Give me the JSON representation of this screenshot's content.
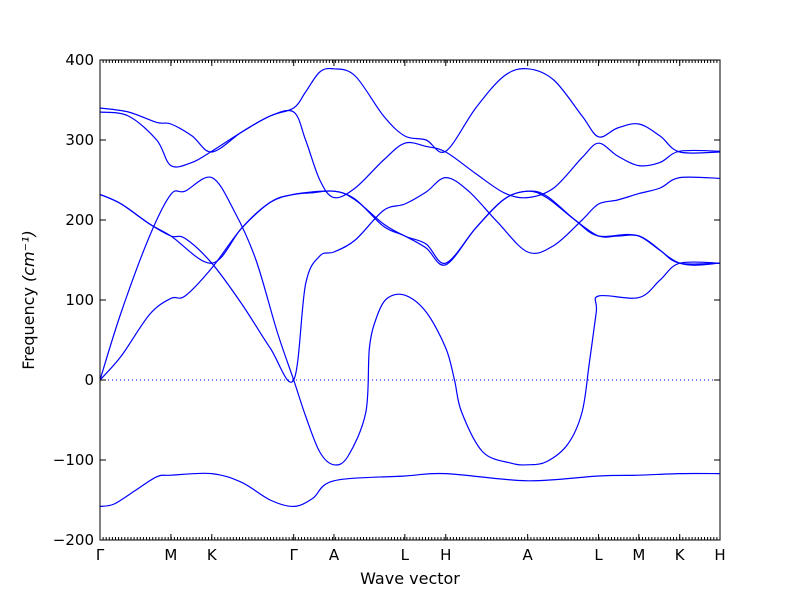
{
  "chart_data": {
    "type": "line",
    "xlabel": "Wave vector",
    "ylabel": "Frequency",
    "ylabel_unit": "(cm⁻¹)",
    "ylim": [
      -200,
      400
    ],
    "yticks": [
      -200,
      -100,
      0,
      100,
      200,
      300,
      400
    ],
    "xticks": [
      {
        "label": "Γ",
        "x": 0
      },
      {
        "label": "M",
        "x": 1
      },
      {
        "label": "K",
        "x": 1.577
      },
      {
        "label": "Γ",
        "x": 2.732
      },
      {
        "label": "A",
        "x": 3.3
      },
      {
        "label": "L",
        "x": 4.3
      },
      {
        "label": "H",
        "x": 4.877
      },
      {
        "label": "A",
        "x": 6.032
      },
      {
        "label": "L",
        "x": 7.032
      },
      {
        "label": "M",
        "x": 7.6
      },
      {
        "label": "K",
        "x": 8.177
      },
      {
        "label": "H",
        "x": 8.745
      }
    ],
    "zero_line": true,
    "series": [
      {
        "values": [
          [
            0,
            -158
          ],
          [
            0.2,
            -155
          ],
          [
            0.5,
            -138
          ],
          [
            0.8,
            -121
          ],
          [
            1,
            -119
          ],
          [
            1.577,
            -117
          ],
          [
            2,
            -128
          ],
          [
            2.4,
            -150
          ],
          [
            2.732,
            -158
          ],
          [
            3.0,
            -148
          ],
          [
            3.3,
            -126
          ],
          [
            4.3,
            -120
          ],
          [
            4.877,
            -117
          ],
          [
            6.032,
            -126
          ],
          [
            7.032,
            -120
          ],
          [
            7.6,
            -119
          ],
          [
            8.177,
            -117
          ],
          [
            8.745,
            -117
          ]
        ]
      },
      {
        "values": [
          [
            0,
            0
          ],
          [
            0.3,
            30
          ],
          [
            0.7,
            82
          ],
          [
            1,
            102
          ],
          [
            1.2,
            105
          ],
          [
            1.577,
            140
          ],
          [
            2.0,
            190
          ],
          [
            2.4,
            222
          ],
          [
            2.732,
            232
          ],
          [
            3.0,
            234
          ],
          [
            3.3,
            236
          ],
          [
            3.6,
            226
          ],
          [
            4.0,
            192
          ],
          [
            4.3,
            180
          ],
          [
            4.6,
            165
          ],
          [
            4.877,
            144
          ],
          [
            5.3,
            190
          ],
          [
            5.7,
            226
          ],
          [
            6.032,
            236
          ],
          [
            6.3,
            228
          ],
          [
            6.7,
            200
          ],
          [
            7.032,
            180
          ],
          [
            7.3,
            180
          ],
          [
            7.6,
            180
          ],
          [
            7.9,
            162
          ],
          [
            8.177,
            146
          ],
          [
            8.745,
            146
          ]
        ]
      },
      {
        "values": [
          [
            0,
            0
          ],
          [
            0.3,
            85
          ],
          [
            0.7,
            180
          ],
          [
            1,
            232
          ],
          [
            1.2,
            236
          ],
          [
            1.577,
            253
          ],
          [
            1.9,
            210
          ],
          [
            2.2,
            150
          ],
          [
            2.5,
            60
          ],
          [
            2.732,
            0
          ],
          [
            2.9,
            -45
          ],
          [
            3.1,
            -90
          ],
          [
            3.3,
            -106
          ],
          [
            3.5,
            -95
          ],
          [
            3.75,
            -40
          ],
          [
            3.8,
            40
          ],
          [
            3.9,
            78
          ],
          [
            4.05,
            102
          ],
          [
            4.3,
            106
          ],
          [
            4.6,
            85
          ],
          [
            4.877,
            40
          ],
          [
            5.0,
            0
          ],
          [
            5.1,
            -40
          ],
          [
            5.4,
            -90
          ],
          [
            5.8,
            -104
          ],
          [
            6.032,
            -106
          ],
          [
            6.3,
            -102
          ],
          [
            6.6,
            -80
          ],
          [
            6.8,
            -40
          ],
          [
            6.9,
            20
          ],
          [
            7.0,
            85
          ],
          [
            7.032,
            105
          ],
          [
            7.6,
            103
          ],
          [
            7.9,
            125
          ],
          [
            8.177,
            146
          ],
          [
            8.745,
            146
          ]
        ]
      },
      {
        "values": [
          [
            0,
            232
          ],
          [
            0.3,
            220
          ],
          [
            0.7,
            195
          ],
          [
            1,
            180
          ],
          [
            1.2,
            177
          ],
          [
            1.577,
            146
          ],
          [
            2.0,
            95
          ],
          [
            2.4,
            40
          ],
          [
            2.732,
            0
          ],
          [
            2.9,
            120
          ],
          [
            3.1,
            155
          ],
          [
            3.3,
            160
          ],
          [
            3.6,
            175
          ],
          [
            4.0,
            212
          ],
          [
            4.3,
            220
          ],
          [
            4.6,
            235
          ],
          [
            4.877,
            253
          ],
          [
            5.2,
            236
          ],
          [
            5.6,
            198
          ],
          [
            6.032,
            160
          ],
          [
            6.4,
            168
          ],
          [
            6.8,
            200
          ],
          [
            7.032,
            220
          ],
          [
            7.3,
            225
          ],
          [
            7.6,
            233
          ],
          [
            7.9,
            240
          ],
          [
            8.177,
            253
          ],
          [
            8.745,
            252
          ]
        ]
      },
      {
        "values": [
          [
            0,
            232
          ],
          [
            0.3,
            220
          ],
          [
            0.7,
            195
          ],
          [
            1,
            180
          ],
          [
            1.577,
            146
          ],
          [
            2.0,
            190
          ],
          [
            2.4,
            222
          ],
          [
            2.732,
            232
          ],
          [
            3.3,
            236
          ],
          [
            3.6,
            225
          ],
          [
            4.0,
            195
          ],
          [
            4.3,
            180
          ],
          [
            4.6,
            170
          ],
          [
            4.877,
            146
          ],
          [
            5.3,
            190
          ],
          [
            5.7,
            226
          ],
          [
            6.032,
            236
          ],
          [
            6.3,
            230
          ],
          [
            6.7,
            200
          ],
          [
            7.032,
            180
          ],
          [
            7.6,
            180
          ],
          [
            8.177,
            146
          ],
          [
            8.745,
            146
          ]
        ]
      },
      {
        "values": [
          [
            0,
            335
          ],
          [
            0.4,
            330
          ],
          [
            0.8,
            300
          ],
          [
            1,
            268
          ],
          [
            1.3,
            272
          ],
          [
            1.577,
            286
          ],
          [
            2.0,
            310
          ],
          [
            2.4,
            330
          ],
          [
            2.732,
            335
          ],
          [
            2.9,
            300
          ],
          [
            3.1,
            250
          ],
          [
            3.3,
            228
          ],
          [
            3.6,
            240
          ],
          [
            4.0,
            275
          ],
          [
            4.3,
            296
          ],
          [
            4.6,
            292
          ],
          [
            4.877,
            285
          ],
          [
            5.3,
            258
          ],
          [
            5.7,
            234
          ],
          [
            6.032,
            228
          ],
          [
            6.4,
            240
          ],
          [
            6.8,
            278
          ],
          [
            7.032,
            296
          ],
          [
            7.3,
            280
          ],
          [
            7.6,
            268
          ],
          [
            7.9,
            272
          ],
          [
            8.177,
            286
          ],
          [
            8.745,
            286
          ]
        ]
      },
      {
        "values": [
          [
            0,
            340
          ],
          [
            0.4,
            335
          ],
          [
            0.8,
            322
          ],
          [
            1,
            320
          ],
          [
            1.3,
            305
          ],
          [
            1.577,
            285
          ],
          [
            2.0,
            310
          ],
          [
            2.4,
            330
          ],
          [
            2.732,
            340
          ],
          [
            2.9,
            360
          ],
          [
            3.1,
            385
          ],
          [
            3.3,
            389
          ],
          [
            3.6,
            380
          ],
          [
            4.0,
            330
          ],
          [
            4.3,
            305
          ],
          [
            4.6,
            300
          ],
          [
            4.877,
            286
          ],
          [
            5.3,
            340
          ],
          [
            5.7,
            380
          ],
          [
            6.032,
            389
          ],
          [
            6.4,
            375
          ],
          [
            6.8,
            330
          ],
          [
            7.032,
            304
          ],
          [
            7.3,
            315
          ],
          [
            7.6,
            320
          ],
          [
            7.9,
            305
          ],
          [
            8.177,
            285
          ],
          [
            8.745,
            285
          ]
        ]
      }
    ]
  }
}
